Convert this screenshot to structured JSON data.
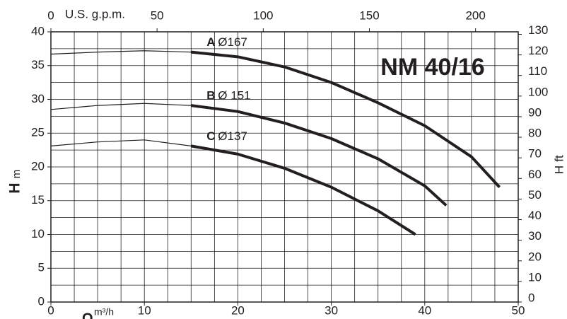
{
  "chart_data": {
    "type": "line",
    "title": "NM 40/16",
    "xlabel": "Q",
    "xunit": "m³/h",
    "ylabel": "H",
    "yunit": "m",
    "x2label": "U.S. g.p.m.",
    "y2label": "H",
    "y2unit": "ft",
    "xlim": [
      0,
      50
    ],
    "xticks": [
      0,
      10,
      20,
      30,
      40,
      50
    ],
    "ylim": [
      0,
      40
    ],
    "yticks": [
      0,
      5,
      10,
      15,
      20,
      25,
      30,
      35,
      40
    ],
    "x2lim": [
      0,
      220.1
    ],
    "x2ticks": [
      0,
      50,
      100,
      150,
      200
    ],
    "y2lim": [
      0,
      131.2
    ],
    "y2ticks": [
      0,
      10,
      20,
      30,
      40,
      50,
      60,
      70,
      80,
      90,
      100,
      110,
      120,
      130
    ],
    "grid": true,
    "grid_step": 2.5,
    "highlight_from": 15,
    "color": "#231f20",
    "series": [
      {
        "name": "A",
        "diameter": "Ø167",
        "x": [
          0,
          5,
          10,
          15,
          20,
          25,
          30,
          35,
          40,
          45,
          48
        ],
        "values": [
          36.7,
          37.0,
          37.2,
          37.0,
          36.3,
          34.8,
          32.5,
          29.5,
          26.1,
          21.5,
          17.0
        ]
      },
      {
        "name": "B",
        "diameter": "Ø 151",
        "x": [
          0,
          5,
          10,
          15,
          20,
          25,
          30,
          35,
          40,
          42.3
        ],
        "values": [
          28.5,
          29.1,
          29.4,
          29.1,
          28.2,
          26.5,
          24.2,
          21.2,
          17.2,
          14.3
        ]
      },
      {
        "name": "C",
        "diameter": "Ø137",
        "x": [
          0,
          5,
          10,
          15,
          20,
          25,
          30,
          35,
          39
        ],
        "values": [
          23.1,
          23.7,
          24.0,
          23.1,
          21.9,
          19.8,
          17.0,
          13.5,
          10.0
        ]
      }
    ]
  }
}
